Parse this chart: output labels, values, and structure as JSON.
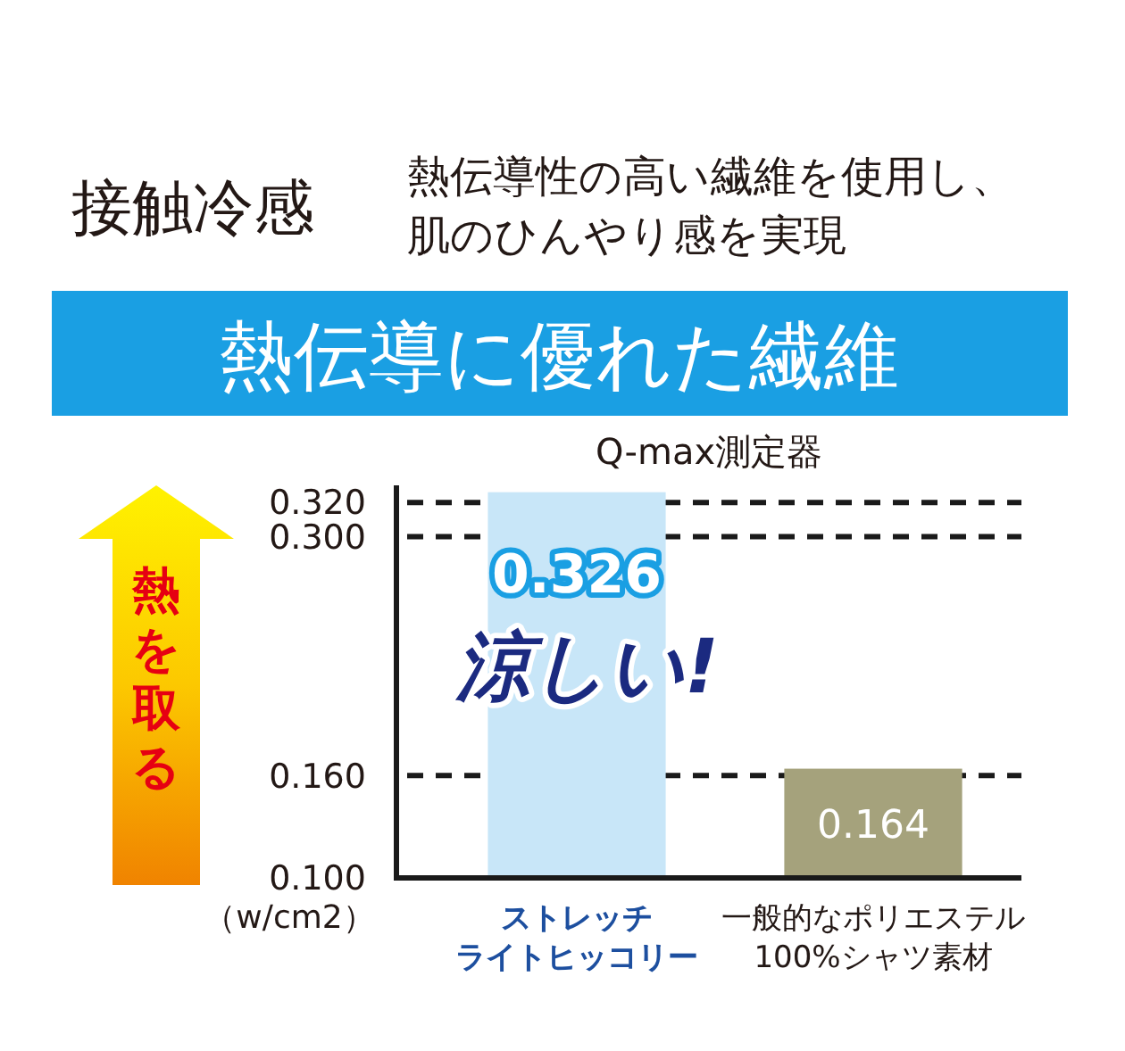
{
  "chart_data": {
    "type": "bar",
    "title": "接触冷感",
    "subtitle": "熱伝導性の高い繊維を使用し、肌のひんやり感を実現",
    "ylabel": "（w/cm2）",
    "annotations": [
      "熱伝導に優れた繊維",
      "Q-max測定器",
      "熱を取る",
      "涼しい!"
    ],
    "categories": [
      "ストレッチライトヒッコリー",
      "一般的なポリエステル100%シャツ素材"
    ],
    "values": [
      0.326,
      0.164
    ],
    "colors": [
      "#c8e6f8",
      "#a5a27c"
    ],
    "ylim": [
      0.1,
      0.33
    ],
    "yticks": [
      {
        "value": 0.1,
        "label": "0.100"
      },
      {
        "value": 0.16,
        "label": "0.160"
      },
      {
        "value": 0.3,
        "label": "0.300"
      },
      {
        "value": 0.32,
        "label": "0.320"
      }
    ],
    "grid": "y",
    "data_labels": true
  }
}
